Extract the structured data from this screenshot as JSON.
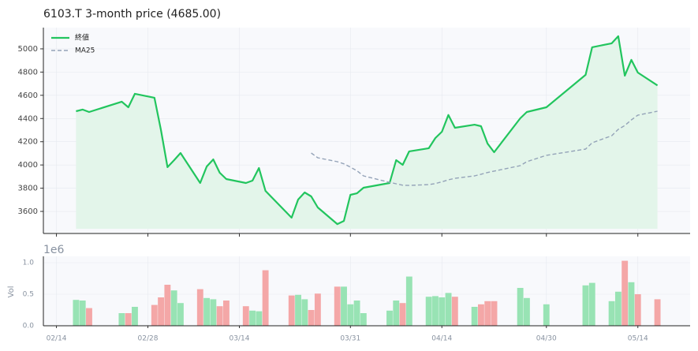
{
  "chart_data": {
    "type": "line",
    "title": "6103.T  3-month price (4685.00)",
    "x": [
      "02/17",
      "02/18",
      "02/19",
      "02/24",
      "02/25",
      "02/26",
      "03/01",
      "03/02",
      "03/03",
      "03/04",
      "03/05",
      "03/08",
      "03/09",
      "03/10",
      "03/11",
      "03/12",
      "03/15",
      "03/16",
      "03/17",
      "03/18",
      "03/22",
      "03/23",
      "03/24",
      "03/25",
      "03/26",
      "03/29",
      "03/30",
      "03/31",
      "04/01",
      "04/02",
      "04/06",
      "04/07",
      "04/08",
      "04/09",
      "04/12",
      "04/13",
      "04/14",
      "04/15",
      "04/16",
      "04/19",
      "04/20",
      "04/21",
      "04/22",
      "04/26",
      "04/27",
      "04/30",
      "05/06",
      "05/07",
      "05/10",
      "05/11",
      "05/12",
      "05/13",
      "05/14",
      "05/17"
    ],
    "series": [
      {
        "name": "終値",
        "color": "#22c55e",
        "fill": "#e3f5ea",
        "values": [
          4463,
          4477,
          4456,
          4545,
          4497,
          4613,
          4579,
          4300,
          3981,
          4041,
          4103,
          3845,
          3987,
          4048,
          3933,
          3879,
          3845,
          3865,
          3974,
          3777,
          3546,
          3702,
          3763,
          3729,
          3634,
          3491,
          3518,
          3743,
          3756,
          3804,
          3845,
          4042,
          4001,
          4117,
          4144,
          4232,
          4286,
          4430,
          4320,
          4347,
          4334,
          4184,
          4110,
          4402,
          4456,
          4497,
          4776,
          5014,
          5048,
          5109,
          4769,
          4905,
          4796,
          4685
        ]
      },
      {
        "name": "MA25",
        "color": "#94a3b8",
        "dashed": true,
        "values": [
          null,
          null,
          null,
          null,
          null,
          null,
          null,
          null,
          null,
          null,
          null,
          null,
          null,
          null,
          null,
          null,
          null,
          null,
          null,
          null,
          null,
          null,
          null,
          4103,
          4062,
          4028,
          4010,
          3981,
          3950,
          3906,
          3850,
          3838,
          3826,
          3824,
          3831,
          3840,
          3855,
          3872,
          3885,
          3906,
          3920,
          3935,
          3947,
          3994,
          4028,
          4083,
          4137,
          4191,
          4252,
          4307,
          4340,
          4388,
          4429,
          4463
        ]
      }
    ],
    "xlim": [
      "02/12",
      "05/22"
    ],
    "xticks": [
      "02/14",
      "02/28",
      "03/14",
      "03/31",
      "04/14",
      "04/30",
      "05/14"
    ],
    "ylim": [
      3410,
      5183
    ],
    "yticks": [
      3600,
      3800,
      4000,
      4200,
      4400,
      4600,
      4800,
      5000
    ],
    "grid": true,
    "legend": "upper left",
    "volume": {
      "ylabel": "Vol",
      "offset_label": "1e6",
      "up_color": "#98e3b4",
      "down_color": "#f4a7a7",
      "values": [
        410000,
        400000,
        280000,
        200000,
        200000,
        300000,
        330000,
        450000,
        650000,
        560000,
        360000,
        580000,
        440000,
        420000,
        310000,
        400000,
        310000,
        240000,
        230000,
        880000,
        480000,
        490000,
        420000,
        250000,
        510000,
        620000,
        620000,
        340000,
        400000,
        200000,
        240000,
        400000,
        360000,
        780000,
        460000,
        470000,
        450000,
        520000,
        460000,
        300000,
        340000,
        390000,
        390000,
        600000,
        440000,
        340000,
        640000,
        680000,
        390000,
        540000,
        1030000,
        690000,
        500000,
        420000
      ],
      "ylim": [
        0,
        1100000
      ],
      "yticks": [
        {
          "value": 0,
          "label": "0.0"
        },
        {
          "value": 500000,
          "label": "0.5"
        },
        {
          "value": 1000000,
          "label": "1.0"
        }
      ]
    }
  }
}
